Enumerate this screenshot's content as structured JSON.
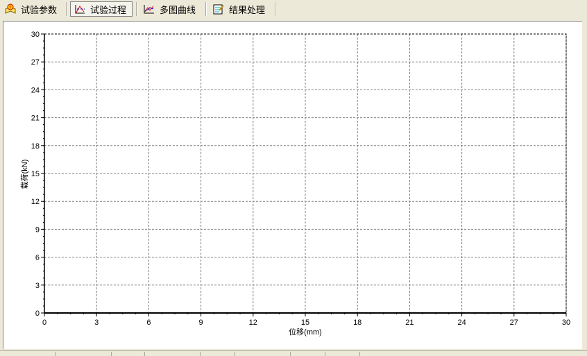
{
  "toolbar": {
    "tabs": [
      {
        "label": "试验参数",
        "icon": "help-book-icon",
        "active": false
      },
      {
        "label": "试验过程",
        "icon": "chart-process-icon",
        "active": true
      },
      {
        "label": "多图曲线",
        "icon": "multi-curve-icon",
        "active": false
      },
      {
        "label": "结果处理",
        "icon": "result-notepad-icon",
        "active": false
      }
    ]
  },
  "chart_data": {
    "type": "line",
    "title": "",
    "xlabel": "位移(mm)",
    "ylabel": "载荷(kN)",
    "xlim": [
      0,
      30
    ],
    "ylim": [
      0,
      30
    ],
    "xticks": [
      "0",
      "3",
      "6",
      "9",
      "12",
      "15",
      "18",
      "21",
      "24",
      "27",
      "30"
    ],
    "yticks": [
      "0",
      "3",
      "6",
      "9",
      "12",
      "15",
      "18",
      "21",
      "24",
      "27",
      "30"
    ],
    "grid": true,
    "series": [],
    "colors": {
      "grid": "#808080",
      "axis": "#000000"
    }
  }
}
